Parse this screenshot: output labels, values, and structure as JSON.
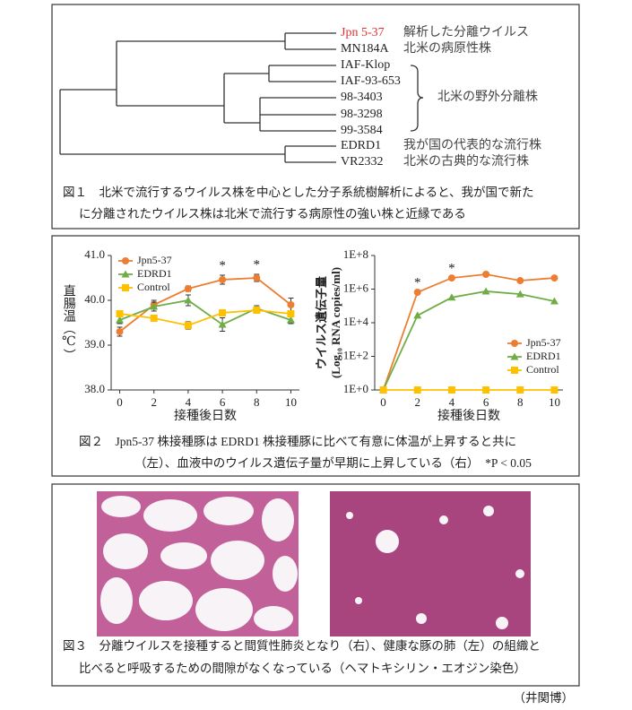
{
  "figure1": {
    "leaves": [
      "Jpn 5-37",
      "MN184A",
      "IAF-Klop",
      "IAF-93-653",
      "98-3403",
      "98-3298",
      "99-3584",
      "EDRD1",
      "VR2332"
    ],
    "notes": [
      "解析した分離ウイルス",
      "北米の病原性株",
      "北米の野外分離株",
      "我が国の代表的な流行株",
      "北米の古典的な流行株"
    ],
    "caption": [
      "図１　北米で流行するウイルス株を中心とした分子系統樹解析によると、我が国で新た",
      "に分離されたウイルス株は北米で流行する病原性の強い株と近縁である"
    ]
  },
  "chart_data": [
    {
      "type": "line",
      "y_label": "直腸温（℃）",
      "x_label": "接種後日数",
      "x": [
        0,
        2,
        4,
        6,
        8,
        10
      ],
      "xlim": [
        -0.5,
        10.5
      ],
      "xticks": [
        0,
        2,
        4,
        6,
        8,
        10
      ],
      "ylim": [
        38,
        41
      ],
      "yticks": [
        {
          "value": 38,
          "label": "38.0"
        },
        {
          "value": 39,
          "label": "39.0"
        },
        {
          "value": 40,
          "label": "40.0"
        },
        {
          "value": 41,
          "label": "41.0"
        }
      ],
      "legend": "upper left",
      "series": [
        {
          "name": "Jpn5-37",
          "color": "#ed7d31",
          "marker": "circle",
          "values": [
            39.3,
            39.9,
            40.26,
            40.46,
            40.5,
            39.9
          ],
          "errors": [
            0.1,
            0.1,
            0.06,
            0.1,
            0.08,
            0.15
          ]
        },
        {
          "name": "EDRD1",
          "color": "#70ad47",
          "marker": "triangle",
          "values": [
            39.56,
            39.86,
            40.0,
            39.46,
            39.82,
            39.56
          ],
          "errors": [
            0.08,
            0.1,
            0.12,
            0.15,
            0.06,
            0.08
          ]
        },
        {
          "name": "Control",
          "color": "#ffc000",
          "marker": "square",
          "values": [
            39.7,
            39.6,
            39.44,
            39.72,
            39.78,
            39.7
          ],
          "errors": [
            0.05,
            0.05,
            0.08,
            0.05,
            0.05,
            0.05
          ]
        }
      ],
      "annotations": [
        {
          "text": "*",
          "x": 6
        },
        {
          "text": "*",
          "x": 8
        }
      ]
    },
    {
      "type": "line",
      "y_label": [
        "ウイルス遺伝子量",
        "(Log₁₀ RNA copies/ml)"
      ],
      "x_label": "接種後日数",
      "x": [
        0,
        2,
        4,
        6,
        8,
        10
      ],
      "xlim": [
        -0.5,
        10.5
      ],
      "xticks": [
        0,
        2,
        4,
        6,
        8,
        10
      ],
      "log_scale": true,
      "ylim": [
        1,
        100000000
      ],
      "yticks": [
        {
          "value": 1,
          "label": "1E+0"
        },
        {
          "value": 100,
          "label": "1E+2"
        },
        {
          "value": 10000,
          "label": "1E+4"
        },
        {
          "value": 1000000,
          "label": "1E+6"
        },
        {
          "value": 100000000,
          "label": "1E+8"
        }
      ],
      "legend": "lower right",
      "series": [
        {
          "name": "Jpn5-37",
          "color": "#ed7d31",
          "marker": "circle",
          "values": [
            1,
            650000,
            4600000,
            7600000,
            3200000,
            4600000
          ]
        },
        {
          "name": "EDRD1",
          "color": "#70ad47",
          "marker": "triangle",
          "values": [
            1,
            27000,
            320000,
            740000,
            500000,
            190000
          ]
        },
        {
          "name": "Control",
          "color": "#ffc000",
          "marker": "square",
          "values": [
            1,
            1,
            1,
            1,
            1,
            1
          ]
        }
      ],
      "annotations": [
        {
          "text": "*",
          "x": 2
        },
        {
          "text": "*",
          "x": 4
        }
      ]
    }
  ],
  "figure2": {
    "caption": [
      "図２　Jpn5-37 株接種豚は EDRD1 株接種豚に比べて有意に体温が上昇すると共に",
      "（左）、血液中のウイルス遺伝子量が早期に上昇している（右）　*P < 0.05"
    ]
  },
  "figure3": {
    "caption": [
      "図３　分離ウイルスを接種すると間質性肺炎となり（右）、健康な豚の肺（左）の組織と",
      "比べると呼吸するための間隙がなくなっている（ヘマトキシリン・エオジン染色）"
    ]
  },
  "credit": "（井関博）"
}
